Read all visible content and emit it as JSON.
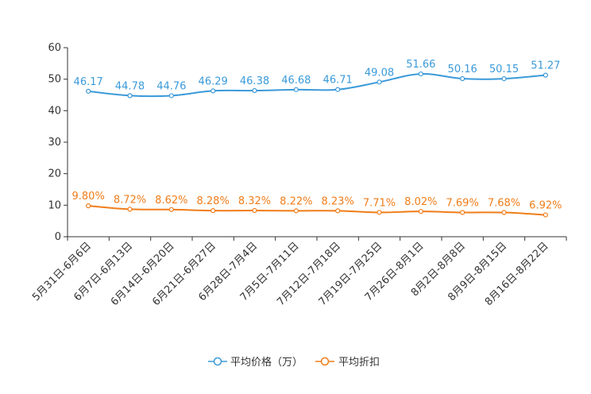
{
  "chart_data": {
    "type": "line",
    "title": "",
    "xlabel": "",
    "ylabel": "",
    "ylim": [
      0,
      60
    ],
    "yticks": [
      0,
      10,
      20,
      30,
      40,
      50,
      60
    ],
    "grid": false,
    "legend_position": "bottom-center",
    "categories": [
      "5月31日-6月6日",
      "6月7日-6月13日",
      "6月14日-6月20日",
      "6月21日-6月27日",
      "6月28日-7月4日",
      "7月5日-7月11日",
      "7月12日-7月18日",
      "7月19日-7月25日",
      "7月26日-8月1日",
      "8月2日-8月8日",
      "8月9日-8月15日",
      "8月16日-8月22日"
    ],
    "series": [
      {
        "name": "平均价格（万）",
        "color": "#3a9ad9",
        "values": [
          46.17,
          44.78,
          44.76,
          46.29,
          46.38,
          46.68,
          46.71,
          49.08,
          51.66,
          50.16,
          50.15,
          51.27
        ],
        "labels": [
          "46.17",
          "44.78",
          "44.76",
          "46.29",
          "46.38",
          "46.68",
          "46.71",
          "49.08",
          "51.66",
          "50.16",
          "50.15",
          "51.27"
        ]
      },
      {
        "name": "平均折扣",
        "color": "#f07d1a",
        "values": [
          9.8,
          8.72,
          8.62,
          8.28,
          8.32,
          8.22,
          8.23,
          7.71,
          8.02,
          7.69,
          7.68,
          6.92
        ],
        "labels": [
          "9.80%",
          "8.72%",
          "8.62%",
          "8.28%",
          "8.32%",
          "8.22%",
          "8.23%",
          "7.71%",
          "8.02%",
          "7.69%",
          "7.68%",
          "6.92%"
        ]
      }
    ]
  }
}
